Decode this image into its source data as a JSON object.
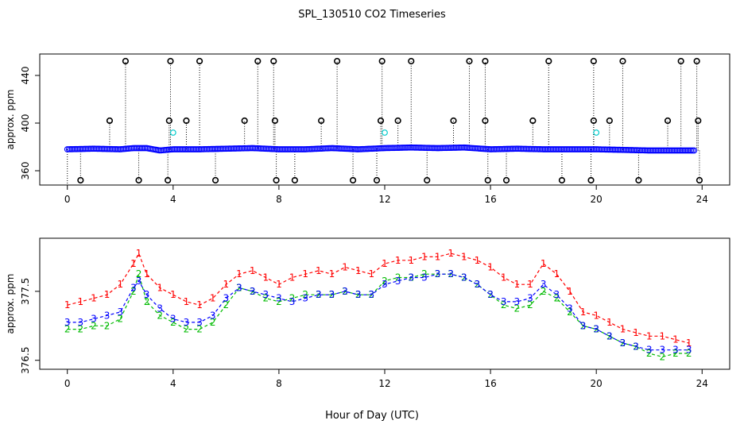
{
  "title": "SPL_130510  CO2 Timeseries",
  "xlabel": "Hour of Day (UTC)",
  "chart_data": [
    {
      "type": "scatter",
      "ylabel": "approx. ppm",
      "xlim": [
        0,
        24
      ],
      "ylim": [
        348,
        458
      ],
      "xticks": [
        0,
        4,
        8,
        12,
        16,
        20,
        24
      ],
      "yticks": [
        360,
        400,
        440
      ],
      "style": "points with dotted vertical drop lines; blue baseline series, black spike series, cyan secondary points",
      "series": [
        {
          "color": "#0000ff",
          "baseline": [
            [
              0,
              378
            ],
            [
              1,
              378.5
            ],
            [
              2,
              378
            ],
            [
              2.5,
              379
            ],
            [
              3,
              379
            ],
            [
              3.5,
              377
            ],
            [
              4,
              378
            ],
            [
              5,
              378
            ],
            [
              6,
              378.5
            ],
            [
              7,
              379
            ],
            [
              8,
              378
            ],
            [
              9,
              378
            ],
            [
              10,
              379
            ],
            [
              11,
              378
            ],
            [
              12,
              379
            ],
            [
              13,
              379.5
            ],
            [
              14,
              379
            ],
            [
              15,
              379.5
            ],
            [
              16,
              378
            ],
            [
              17,
              378.5
            ],
            [
              18,
              378
            ],
            [
              19,
              378
            ],
            [
              20,
              378
            ],
            [
              21,
              377.5
            ],
            [
              22,
              377
            ],
            [
              23,
              377
            ],
            [
              23.75,
              377
            ]
          ]
        },
        {
          "color": "#000000",
          "high_spikes": [
            [
              2.2,
              452
            ],
            [
              3.9,
              452
            ],
            [
              5.0,
              452
            ],
            [
              7.2,
              452
            ],
            [
              7.8,
              452
            ],
            [
              10.2,
              452
            ],
            [
              11.9,
              452
            ],
            [
              13.0,
              452
            ],
            [
              15.2,
              452
            ],
            [
              15.8,
              452
            ],
            [
              18.2,
              452
            ],
            [
              19.9,
              452
            ],
            [
              21.0,
              452
            ],
            [
              23.2,
              452
            ],
            [
              23.8,
              452
            ]
          ],
          "mid_spikes": [
            [
              1.6,
              402
            ],
            [
              3.85,
              402
            ],
            [
              4.5,
              402
            ],
            [
              6.7,
              402
            ],
            [
              7.85,
              402
            ],
            [
              9.6,
              402
            ],
            [
              11.85,
              402
            ],
            [
              12.5,
              402
            ],
            [
              14.6,
              402
            ],
            [
              15.8,
              402
            ],
            [
              17.6,
              402
            ],
            [
              19.9,
              402
            ],
            [
              20.5,
              402
            ],
            [
              22.7,
              402
            ],
            [
              23.85,
              402
            ]
          ],
          "low_spikes": [
            [
              0.5,
              352
            ],
            [
              2.7,
              352
            ],
            [
              3.8,
              352
            ],
            [
              5.6,
              352
            ],
            [
              7.9,
              352
            ],
            [
              8.6,
              352
            ],
            [
              10.8,
              352
            ],
            [
              11.7,
              352
            ],
            [
              13.6,
              352
            ],
            [
              15.9,
              352
            ],
            [
              16.6,
              352
            ],
            [
              18.7,
              352
            ],
            [
              19.8,
              352
            ],
            [
              21.6,
              352
            ],
            [
              23.9,
              352
            ]
          ]
        },
        {
          "color": "#00cccc",
          "points": [
            [
              4.0,
              392
            ],
            [
              12.0,
              392
            ],
            [
              20.0,
              392
            ]
          ]
        }
      ]
    },
    {
      "type": "line",
      "ylabel": "approx. ppm",
      "xlim": [
        0,
        24
      ],
      "ylim": [
        376.37,
        378.27
      ],
      "xticks": [
        0,
        4,
        8,
        12,
        16,
        20,
        24
      ],
      "yticks": [
        376.5,
        377.5
      ],
      "marker_style": "series drawn as digit characters with dashed connecting lines",
      "series": [
        {
          "marker": "1",
          "color": "#ff0000",
          "values": [
            [
              0,
              377.3
            ],
            [
              0.5,
              377.35
            ],
            [
              1,
              377.4
            ],
            [
              1.5,
              377.45
            ],
            [
              2,
              377.6
            ],
            [
              2.5,
              377.9
            ],
            [
              2.7,
              378.05
            ],
            [
              3,
              377.75
            ],
            [
              3.5,
              377.55
            ],
            [
              4,
              377.45
            ],
            [
              4.5,
              377.35
            ],
            [
              5,
              377.3
            ],
            [
              5.5,
              377.4
            ],
            [
              6,
              377.6
            ],
            [
              6.5,
              377.75
            ],
            [
              7,
              377.8
            ],
            [
              7.5,
              377.7
            ],
            [
              8,
              377.6
            ],
            [
              8.5,
              377.7
            ],
            [
              9,
              377.75
            ],
            [
              9.5,
              377.8
            ],
            [
              10,
              377.75
            ],
            [
              10.5,
              377.85
            ],
            [
              11,
              377.8
            ],
            [
              11.5,
              377.75
            ],
            [
              12,
              377.9
            ],
            [
              12.5,
              377.95
            ],
            [
              13,
              377.95
            ],
            [
              13.5,
              378.0
            ],
            [
              14,
              378.0
            ],
            [
              14.5,
              378.05
            ],
            [
              15,
              378.0
            ],
            [
              15.5,
              377.95
            ],
            [
              16,
              377.85
            ],
            [
              16.5,
              377.7
            ],
            [
              17,
              377.6
            ],
            [
              17.5,
              377.6
            ],
            [
              18,
              377.9
            ],
            [
              18.5,
              377.75
            ],
            [
              19,
              377.5
            ],
            [
              19.5,
              377.2
            ],
            [
              20,
              377.15
            ],
            [
              20.5,
              377.05
            ],
            [
              21,
              376.95
            ],
            [
              21.5,
              376.9
            ],
            [
              22,
              376.85
            ],
            [
              22.5,
              376.85
            ],
            [
              23,
              376.8
            ],
            [
              23.5,
              376.75
            ]
          ]
        },
        {
          "marker": "2",
          "color": "#00bb00",
          "values": [
            [
              0,
              376.95
            ],
            [
              0.5,
              376.95
            ],
            [
              1,
              377.0
            ],
            [
              1.5,
              377.0
            ],
            [
              2,
              377.1
            ],
            [
              2.5,
              377.5
            ],
            [
              2.7,
              377.75
            ],
            [
              3,
              377.35
            ],
            [
              3.5,
              377.15
            ],
            [
              4,
              377.05
            ],
            [
              4.5,
              376.95
            ],
            [
              5,
              376.95
            ],
            [
              5.5,
              377.05
            ],
            [
              6,
              377.3
            ],
            [
              6.5,
              377.55
            ],
            [
              7,
              377.5
            ],
            [
              7.5,
              377.4
            ],
            [
              8,
              377.35
            ],
            [
              8.5,
              377.4
            ],
            [
              9,
              377.45
            ],
            [
              9.5,
              377.45
            ],
            [
              10,
              377.45
            ],
            [
              10.5,
              377.5
            ],
            [
              11,
              377.45
            ],
            [
              11.5,
              377.45
            ],
            [
              12,
              377.65
            ],
            [
              12.5,
              377.7
            ],
            [
              13,
              377.7
            ],
            [
              13.5,
              377.75
            ],
            [
              14,
              377.75
            ],
            [
              14.5,
              377.75
            ],
            [
              15,
              377.7
            ],
            [
              15.5,
              377.6
            ],
            [
              16,
              377.45
            ],
            [
              16.5,
              377.3
            ],
            [
              17,
              377.25
            ],
            [
              17.5,
              377.3
            ],
            [
              18,
              377.5
            ],
            [
              18.5,
              377.4
            ],
            [
              19,
              377.2
            ],
            [
              19.5,
              377.0
            ],
            [
              20,
              376.95
            ],
            [
              20.5,
              376.85
            ],
            [
              21,
              376.75
            ],
            [
              21.5,
              376.7
            ],
            [
              22,
              376.6
            ],
            [
              22.5,
              376.55
            ],
            [
              23,
              376.6
            ],
            [
              23.5,
              376.6
            ]
          ]
        },
        {
          "marker": "3",
          "color": "#0000ff",
          "values": [
            [
              0,
              377.05
            ],
            [
              0.5,
              377.05
            ],
            [
              1,
              377.1
            ],
            [
              1.5,
              377.15
            ],
            [
              2,
              377.2
            ],
            [
              2.5,
              377.55
            ],
            [
              2.7,
              377.65
            ],
            [
              3,
              377.45
            ],
            [
              3.5,
              377.25
            ],
            [
              4,
              377.1
            ],
            [
              4.5,
              377.05
            ],
            [
              5,
              377.05
            ],
            [
              5.5,
              377.15
            ],
            [
              6,
              377.4
            ],
            [
              6.5,
              377.55
            ],
            [
              7,
              377.5
            ],
            [
              7.5,
              377.45
            ],
            [
              8,
              377.4
            ],
            [
              8.5,
              377.35
            ],
            [
              9,
              377.4
            ],
            [
              9.5,
              377.45
            ],
            [
              10,
              377.45
            ],
            [
              10.5,
              377.5
            ],
            [
              11,
              377.45
            ],
            [
              11.5,
              377.45
            ],
            [
              12,
              377.6
            ],
            [
              12.5,
              377.65
            ],
            [
              13,
              377.7
            ],
            [
              13.5,
              377.7
            ],
            [
              14,
              377.75
            ],
            [
              14.5,
              377.75
            ],
            [
              15,
              377.7
            ],
            [
              15.5,
              377.6
            ],
            [
              16,
              377.45
            ],
            [
              16.5,
              377.35
            ],
            [
              17,
              377.35
            ],
            [
              17.5,
              377.4
            ],
            [
              18,
              377.6
            ],
            [
              18.5,
              377.45
            ],
            [
              19,
              377.25
            ],
            [
              19.5,
              377.0
            ],
            [
              20,
              376.95
            ],
            [
              20.5,
              376.85
            ],
            [
              21,
              376.75
            ],
            [
              21.5,
              376.7
            ],
            [
              22,
              376.65
            ],
            [
              22.5,
              376.65
            ],
            [
              23,
              376.65
            ],
            [
              23.5,
              376.65
            ]
          ]
        }
      ]
    }
  ]
}
